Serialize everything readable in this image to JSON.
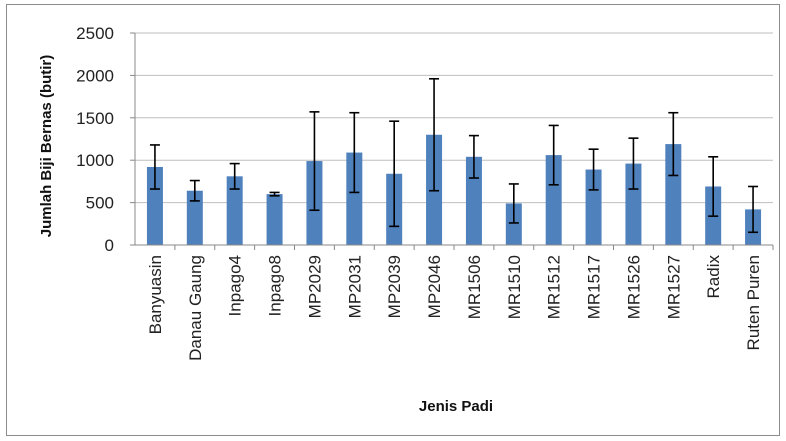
{
  "chart_data": {
    "type": "bar",
    "title": "",
    "xlabel": "Jenis Padi",
    "ylabel": "Jumlah Biji Bernas (butir)",
    "ylim": [
      0,
      2500
    ],
    "yticks": [
      0,
      500,
      1000,
      1500,
      2000,
      2500
    ],
    "grid": true,
    "legend": "none",
    "colors": {
      "bar": "#4f81bd",
      "error_bar": "#000000",
      "grid": "#bfbfbf"
    },
    "categories": [
      "Banyuasin",
      "Danau Gaung",
      "Inpago4",
      "Inpago8",
      "MP2029",
      "MP2031",
      "MP2039",
      "MP2046",
      "MR1506",
      "MR1510",
      "MR1512",
      "MR1517",
      "MR1526",
      "MR1527",
      "Radix",
      "Ruten Puren"
    ],
    "values": [
      920,
      640,
      810,
      600,
      990,
      1090,
      840,
      1300,
      1040,
      490,
      1060,
      890,
      960,
      1190,
      690,
      420
    ],
    "error": [
      260,
      120,
      150,
      20,
      580,
      470,
      620,
      660,
      250,
      230,
      350,
      240,
      300,
      370,
      350,
      270
    ]
  }
}
